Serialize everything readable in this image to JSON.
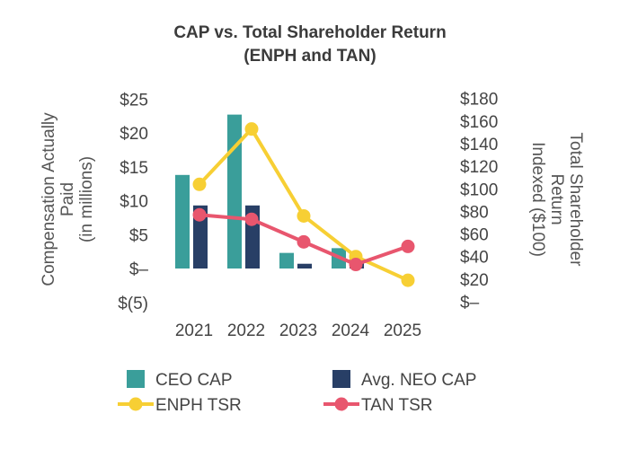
{
  "chart_data": {
    "type": "bar",
    "title_line1": "CAP vs. Total Shareholder Return",
    "title_line2": "(ENPH and TAN)",
    "categories": [
      "2021",
      "2022",
      "2023",
      "2024",
      "2025"
    ],
    "left_axis": {
      "title_line1": "Compensation Actually",
      "title_line2": "Paid",
      "title_line3": "(in millions)",
      "range": [
        -5,
        25
      ],
      "ticks": [
        25,
        20,
        15,
        10,
        5,
        0,
        -5
      ],
      "tick_labels": [
        "$25",
        "$20",
        "$15",
        "$10",
        "$5",
        "$–",
        "$(5)"
      ]
    },
    "right_axis": {
      "title_line1": "Total Shareholder",
      "title_line2": "Return",
      "title_line3": "Indexed ($100)",
      "range": [
        0,
        180
      ],
      "ticks": [
        180,
        160,
        140,
        120,
        100,
        80,
        60,
        40,
        20,
        0
      ],
      "tick_labels": [
        "$180",
        "$160",
        "$140",
        "$120",
        "$100",
        "$80",
        "$60",
        "$40",
        "$20",
        "$–"
      ]
    },
    "bar_series": [
      {
        "name": "CEO CAP",
        "color": "#3a9e9a",
        "axis": "left",
        "values": [
          13.8,
          22.7,
          2.3,
          3.0,
          null
        ]
      },
      {
        "name": "Avg. NEO CAP",
        "color": "#283f66",
        "axis": "left",
        "values": [
          9.3,
          9.3,
          0.7,
          1.5,
          null
        ]
      }
    ],
    "line_series": [
      {
        "name": "ENPH TSR",
        "color": "#f7cf34",
        "axis": "right",
        "values": [
          104,
          153,
          76,
          40,
          19
        ]
      },
      {
        "name": "TAN TSR",
        "color": "#e8566e",
        "axis": "right",
        "values": [
          77,
          73,
          53,
          33,
          49
        ]
      }
    ],
    "legend_position": "bottom",
    "grid": false
  }
}
